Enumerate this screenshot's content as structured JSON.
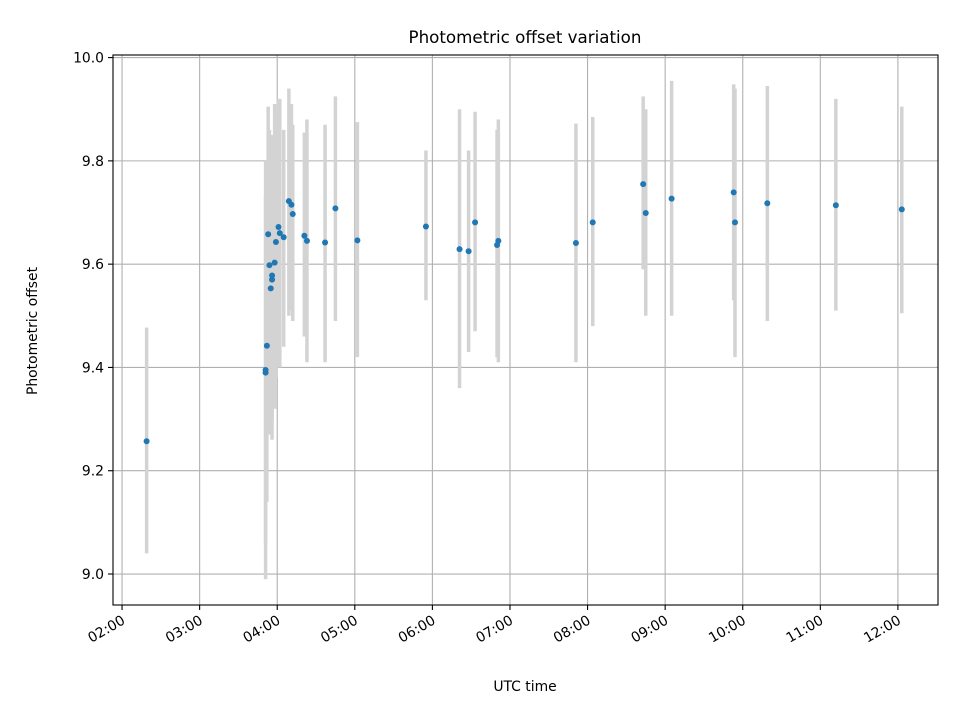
{
  "chart_data": {
    "type": "scatter",
    "title": "Photometric offset variation",
    "xlabel": "UTC time",
    "ylabel": "Photometric offset",
    "x_tick_labels": [
      "02:00",
      "03:00",
      "04:00",
      "05:00",
      "06:00",
      "07:00",
      "08:00",
      "09:00",
      "10:00",
      "11:00",
      "12:00"
    ],
    "y_tick_labels": [
      "9.0",
      "9.2",
      "9.4",
      "9.6",
      "9.8",
      "10.0"
    ],
    "y_ticks": [
      9.0,
      9.2,
      9.4,
      9.6,
      9.8,
      10.0
    ],
    "xlim": [
      "01:53",
      "12:31"
    ],
    "ylim": [
      8.94,
      10.005
    ],
    "grid": true,
    "colors": {
      "point": "#1f77b4",
      "errorbar": "#d3d3d3",
      "grid": "#b0b0b0"
    },
    "series": [
      {
        "points": [
          {
            "x": "02:19",
            "y": 9.257,
            "yerr_low": 9.04,
            "yerr_high": 9.477
          },
          {
            "x": "03:51",
            "y": 9.39,
            "yerr_low": 8.99,
            "yerr_high": 9.8
          },
          {
            "x": "03:51",
            "y": 9.395,
            "yerr_low": 9.06,
            "yerr_high": 9.73
          },
          {
            "x": "03:52",
            "y": 9.442,
            "yerr_low": 9.14,
            "yerr_high": 9.74
          },
          {
            "x": "03:53",
            "y": 9.658,
            "yerr_low": 9.4,
            "yerr_high": 9.905
          },
          {
            "x": "03:54",
            "y": 9.598,
            "yerr_low": 9.27,
            "yerr_high": 9.86
          },
          {
            "x": "03:55",
            "y": 9.553,
            "yerr_low": 9.3,
            "yerr_high": 9.8
          },
          {
            "x": "03:56",
            "y": 9.578,
            "yerr_low": 9.26,
            "yerr_high": 9.85
          },
          {
            "x": "03:56",
            "y": 9.57,
            "yerr_low": 9.3,
            "yerr_high": 9.84
          },
          {
            "x": "03:58",
            "y": 9.603,
            "yerr_low": 9.32,
            "yerr_high": 9.91
          },
          {
            "x": "03:59",
            "y": 9.643,
            "yerr_low": 9.38,
            "yerr_high": 9.9
          },
          {
            "x": "04:01",
            "y": 9.672,
            "yerr_low": 9.4,
            "yerr_high": 9.92
          },
          {
            "x": "04:02",
            "y": 9.66,
            "yerr_low": 9.4,
            "yerr_high": 9.92
          },
          {
            "x": "04:05",
            "y": 9.652,
            "yerr_low": 9.44,
            "yerr_high": 9.86
          },
          {
            "x": "04:09",
            "y": 9.722,
            "yerr_low": 9.5,
            "yerr_high": 9.94
          },
          {
            "x": "04:11",
            "y": 9.715,
            "yerr_low": 9.51,
            "yerr_high": 9.91
          },
          {
            "x": "04:12",
            "y": 9.697,
            "yerr_low": 9.49,
            "yerr_high": 9.87
          },
          {
            "x": "04:21",
            "y": 9.655,
            "yerr_low": 9.46,
            "yerr_high": 9.855
          },
          {
            "x": "04:23",
            "y": 9.645,
            "yerr_low": 9.41,
            "yerr_high": 9.88
          },
          {
            "x": "04:37",
            "y": 9.642,
            "yerr_low": 9.41,
            "yerr_high": 9.87
          },
          {
            "x": "04:45",
            "y": 9.708,
            "yerr_low": 9.49,
            "yerr_high": 9.925
          },
          {
            "x": "05:02",
            "y": 9.646,
            "yerr_low": 9.42,
            "yerr_high": 9.875
          },
          {
            "x": "05:55",
            "y": 9.673,
            "yerr_low": 9.53,
            "yerr_high": 9.82
          },
          {
            "x": "06:21",
            "y": 9.629,
            "yerr_low": 9.36,
            "yerr_high": 9.9
          },
          {
            "x": "06:28",
            "y": 9.625,
            "yerr_low": 9.43,
            "yerr_high": 9.82
          },
          {
            "x": "06:33",
            "y": 9.681,
            "yerr_low": 9.47,
            "yerr_high": 9.895
          },
          {
            "x": "06:50",
            "y": 9.637,
            "yerr_low": 9.42,
            "yerr_high": 9.86
          },
          {
            "x": "06:51",
            "y": 9.645,
            "yerr_low": 9.41,
            "yerr_high": 9.88
          },
          {
            "x": "07:51",
            "y": 9.641,
            "yerr_low": 9.41,
            "yerr_high": 9.872
          },
          {
            "x": "08:04",
            "y": 9.681,
            "yerr_low": 9.48,
            "yerr_high": 9.885
          },
          {
            "x": "08:43",
            "y": 9.755,
            "yerr_low": 9.59,
            "yerr_high": 9.925
          },
          {
            "x": "08:45",
            "y": 9.699,
            "yerr_low": 9.5,
            "yerr_high": 9.9
          },
          {
            "x": "09:05",
            "y": 9.727,
            "yerr_low": 9.5,
            "yerr_high": 9.955
          },
          {
            "x": "09:53",
            "y": 9.739,
            "yerr_low": 9.53,
            "yerr_high": 9.948
          },
          {
            "x": "09:54",
            "y": 9.681,
            "yerr_low": 9.42,
            "yerr_high": 9.94
          },
          {
            "x": "10:19",
            "y": 9.718,
            "yerr_low": 9.49,
            "yerr_high": 9.945
          },
          {
            "x": "11:12",
            "y": 9.714,
            "yerr_low": 9.51,
            "yerr_high": 9.92
          },
          {
            "x": "12:03",
            "y": 9.706,
            "yerr_low": 9.505,
            "yerr_high": 9.905
          }
        ]
      }
    ]
  }
}
